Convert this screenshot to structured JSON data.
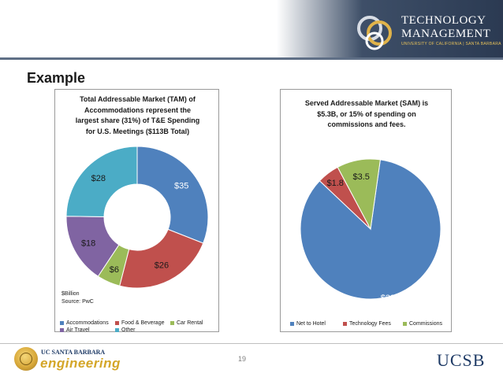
{
  "header": {
    "logo_line1": "TECHNOLOGY",
    "logo_line2": "MANAGEMENT",
    "logo_line3": "UNIVERSITY OF CALIFORNIA | SANTA BARBARA"
  },
  "slide": {
    "title": "Example",
    "page_number": "19"
  },
  "footer": {
    "eng_line1": "UC SANTA BARBARA",
    "eng_line2": "engineering",
    "ucsb": "UCSB"
  },
  "chart_data": [
    {
      "type": "donut",
      "title": "Total Addressable Market (TAM) of Accommodations represent the largest share (31%) of T&E Spending for U.S. Meetings ($113B Total)",
      "title_lines": [
        "Total Addressable Market (TAM) of",
        "Accommodations represent the",
        "largest share (31%) of T&E Spending",
        "for U.S. Meetings ($113B Total)"
      ],
      "note_lines": [
        "$Billion",
        "Source: PwC"
      ],
      "categories": [
        "Accommodations",
        "Food & Beverage",
        "Car Rental",
        "Air Travel",
        "Other"
      ],
      "values": [
        35,
        26,
        6,
        18,
        28
      ],
      "data_labels": [
        "$35",
        "$26",
        "$6",
        "$18",
        "$28"
      ],
      "colors": [
        "#4f81bd",
        "#c0504d",
        "#9bbb59",
        "#8064a2",
        "#4bacc6"
      ],
      "legend_position": "bottom"
    },
    {
      "type": "pie",
      "title": "Served Addressable Market (SAM) is $5.3B, or 15% of spending on commissions and fees.",
      "title_lines": [
        "Served Addressable Market (SAM) is",
        "$5.3B, or 15% of spending on",
        "commissions and fees."
      ],
      "categories": [
        "Net to Hotel",
        "Technology Fees",
        "Commissions"
      ],
      "values": [
        29.7,
        1.8,
        3.5
      ],
      "data_labels": [
        "$29.7",
        "$1.8",
        "$3.5"
      ],
      "colors": [
        "#4f81bd",
        "#c0504d",
        "#9bbb59"
      ],
      "legend_position": "bottom"
    }
  ]
}
